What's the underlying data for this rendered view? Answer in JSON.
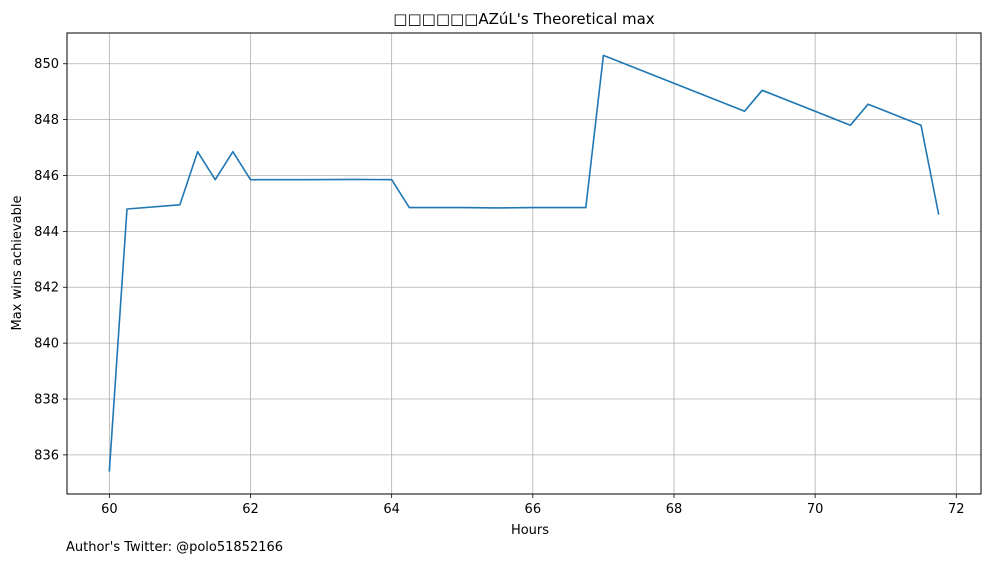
{
  "chart_data": {
    "type": "line",
    "title": "□□□□□□AZúL's Theoretical max",
    "xlabel": "Hours",
    "ylabel": "Max wins achievable",
    "xlim": [
      59.4,
      72.35
    ],
    "ylim": [
      834.6,
      851.1
    ],
    "xticks": [
      60,
      62,
      64,
      66,
      68,
      70,
      72
    ],
    "yticks": [
      836,
      838,
      840,
      842,
      844,
      846,
      848,
      850
    ],
    "grid": true,
    "series": [
      {
        "color": "#1f77b4",
        "x": [
          60.0,
          60.25,
          61.0,
          61.25,
          61.5,
          61.75,
          62.0,
          62.75,
          63.5,
          64.0,
          64.25,
          65.0,
          65.5,
          66.0,
          66.75,
          67.0,
          69.0,
          69.25,
          70.5,
          70.75,
          71.5,
          71.75
        ],
        "y": [
          835.4,
          844.8,
          844.95,
          846.85,
          845.85,
          846.85,
          845.85,
          845.85,
          845.86,
          845.85,
          844.85,
          844.85,
          844.84,
          844.85,
          844.85,
          850.3,
          848.3,
          849.05,
          847.8,
          848.55,
          847.8,
          844.6
        ]
      }
    ],
    "footnote": "Author's Twitter: @polo51852166"
  }
}
